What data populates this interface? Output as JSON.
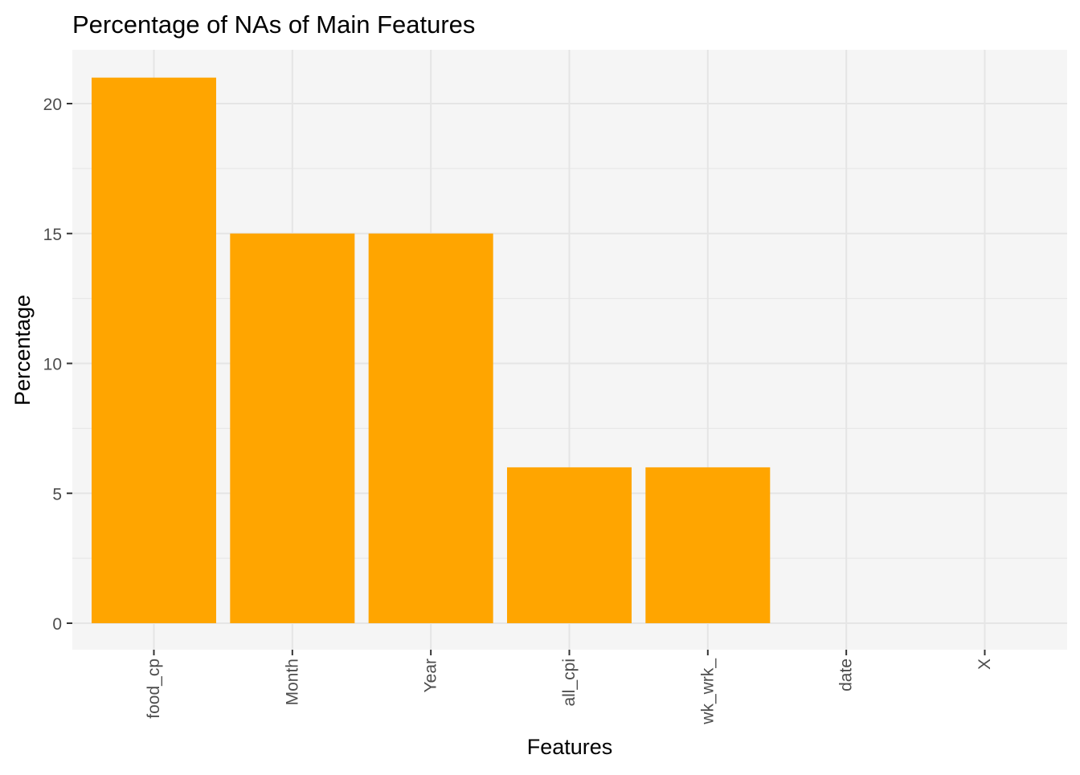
{
  "chart_data": {
    "type": "bar",
    "title": "Percentage of NAs of Main Features",
    "xlabel": "Features",
    "ylabel": "Percentage",
    "categories": [
      "food_cp",
      "Month",
      "Year",
      "all_cpi",
      "wk_wrk_",
      "date",
      "X"
    ],
    "values": [
      21,
      15,
      15,
      6,
      6,
      0,
      0
    ],
    "ylim": [
      0,
      22
    ],
    "yticks": [
      0,
      5,
      10,
      15,
      20
    ],
    "grid": true,
    "x_tick_rotation": "vertical",
    "colors": {
      "bar": "#FFA500",
      "panel_background": "#F5F5F5",
      "grid": "#E5E5E5",
      "tick_text": "#4D4D4D",
      "text": "#000000"
    }
  }
}
